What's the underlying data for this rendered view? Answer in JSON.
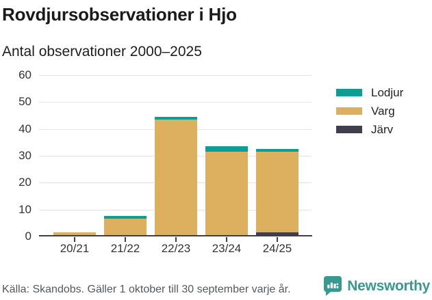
{
  "page": {
    "title": "Rovdjursobservationer i Hjo",
    "subtitle": "Antal observationer 2000–2025"
  },
  "chart_data": {
    "type": "bar",
    "stacked": true,
    "title": "Rovdjursobservationer i Hjo",
    "subtitle": "Antal observationer 2000–2025",
    "categories": [
      "20/21",
      "21/22",
      "22/23",
      "23/24",
      "24/25"
    ],
    "series": [
      {
        "name": "Järv",
        "color": "#413e4e",
        "values": [
          0,
          0,
          0,
          0,
          1
        ]
      },
      {
        "name": "Varg",
        "color": "#dcb05e",
        "values": [
          1,
          6,
          43,
          31,
          30
        ]
      },
      {
        "name": "Lodjur",
        "color": "#0b9e96",
        "values": [
          0,
          1,
          1,
          2,
          1
        ]
      }
    ],
    "totals": [
      1,
      7,
      44,
      33,
      32
    ],
    "legend": [
      "Lodjur",
      "Varg",
      "Järv"
    ],
    "legend_position": "right",
    "xlabel": "",
    "ylabel": "",
    "ylim": [
      0,
      60
    ],
    "yticks": [
      0,
      10,
      20,
      30,
      40,
      50,
      60
    ],
    "grid": true
  },
  "footer": {
    "source": "Källa: Skandobs. Gäller 1 oktober till 30 september varje år.",
    "brand": "Newsworthy"
  },
  "colors": {
    "background": "#ffffff",
    "grid": "#e4e4e4",
    "axis": "#3f3d46",
    "title_text": "#1a1a1a",
    "axis_text": "#333333",
    "footer_text": "#55585b",
    "brand_teal": "#38998f",
    "lodjur": "#0b9e96",
    "varg": "#dcb05e",
    "jarv": "#413e4e"
  }
}
